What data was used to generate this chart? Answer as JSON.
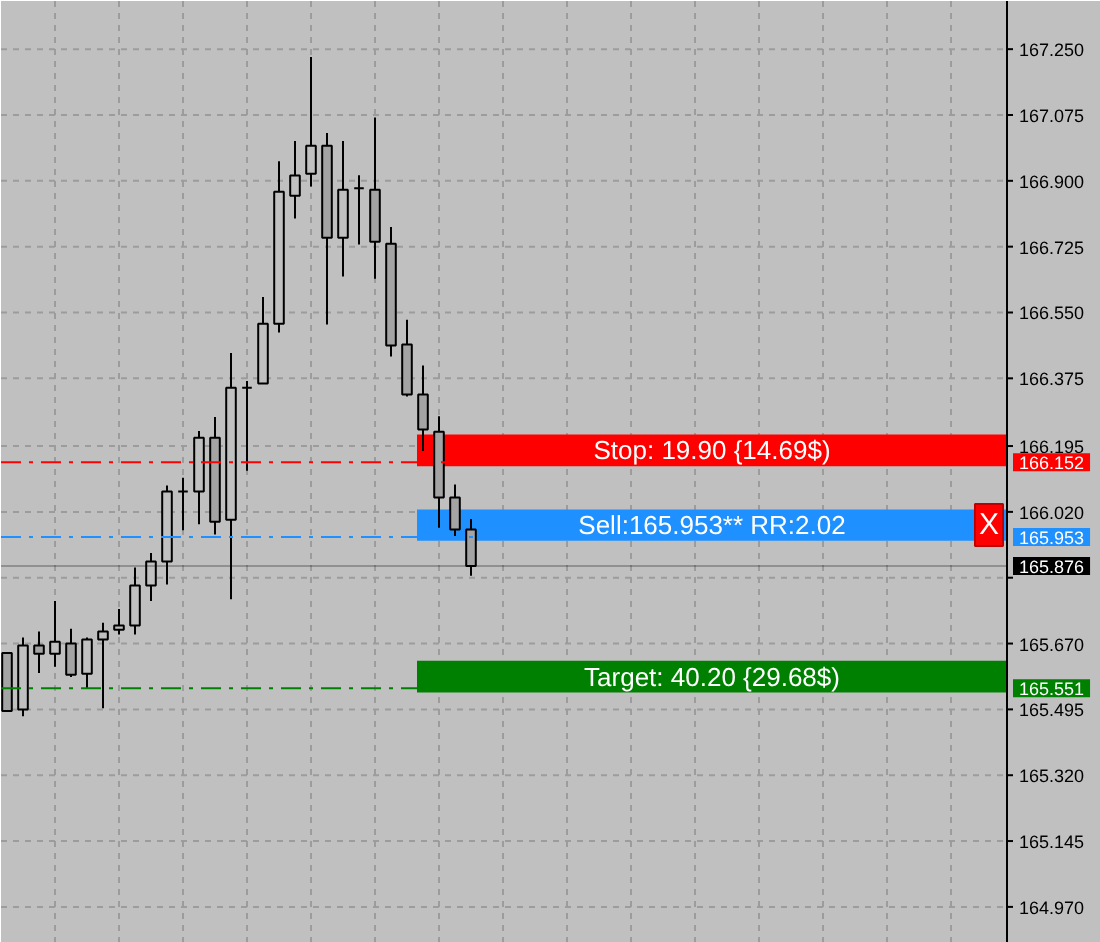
{
  "chart_data": {
    "type": "candlestick",
    "categories": [
      null,
      null,
      null,
      null,
      null,
      null,
      null,
      null,
      null,
      null,
      null,
      null,
      null,
      null,
      null,
      null,
      null,
      null,
      null,
      null,
      null,
      null,
      null,
      null,
      null,
      null,
      null,
      null,
      null,
      null,
      null,
      null,
      null,
      null,
      null,
      null,
      null,
      null,
      null,
      null,
      null,
      null,
      null,
      null,
      null,
      null,
      null,
      null,
      null,
      null,
      null,
      null,
      null,
      null,
      null,
      null,
      null,
      null,
      null,
      null,
      null,
      null,
      null
    ],
    "ohlc": [
      [
        165.645,
        165.645,
        165.491,
        165.491
      ],
      [
        165.495,
        165.686,
        165.477,
        165.665
      ],
      [
        165.665,
        165.702,
        165.592,
        165.643
      ],
      [
        165.643,
        165.783,
        165.608,
        165.675
      ],
      [
        165.67,
        165.709,
        165.581,
        165.587
      ],
      [
        165.59,
        165.686,
        165.549,
        165.681
      ],
      [
        165.681,
        165.725,
        165.498,
        165.702
      ],
      [
        165.707,
        165.762,
        165.694,
        165.718
      ],
      [
        165.718,
        165.872,
        165.694,
        165.824
      ],
      [
        165.824,
        165.911,
        165.783,
        165.888
      ],
      [
        165.888,
        166.09,
        165.827,
        166.074
      ],
      [
        166.074,
        166.111,
        165.971,
        166.074
      ],
      [
        166.074,
        166.235,
        165.987,
        166.217
      ],
      [
        166.217,
        166.272,
        165.96,
        165.994
      ],
      [
        165.999,
        166.442,
        165.788,
        166.35
      ],
      [
        166.35,
        166.368,
        166.129,
        166.35
      ],
      [
        166.361,
        166.591,
        166.361,
        166.52
      ],
      [
        166.52,
        166.952,
        166.497,
        166.871
      ],
      [
        166.86,
        167.006,
        166.8,
        166.914
      ],
      [
        166.919,
        167.229,
        166.885,
        166.993
      ],
      [
        166.993,
        167.027,
        166.518,
        166.749
      ],
      [
        166.749,
        167.006,
        166.646,
        166.876
      ],
      [
        166.88,
        166.915,
        166.731,
        166.88
      ],
      [
        166.876,
        167.068,
        166.64,
        166.738
      ],
      [
        166.733,
        166.777,
        166.433,
        166.462
      ],
      [
        166.465,
        166.531,
        166.327,
        166.332
      ],
      [
        166.332,
        166.409,
        166.182,
        166.239
      ],
      [
        166.233,
        166.274,
        165.978,
        166.058
      ],
      [
        166.058,
        166.093,
        165.955,
        165.973
      ],
      [
        165.973,
        166.001,
        165.85,
        165.876
      ],
      null,
      null,
      null,
      null,
      null,
      null,
      null,
      null,
      null,
      null,
      null,
      null,
      null,
      null,
      null,
      null,
      null,
      null,
      null,
      null,
      null,
      null,
      null,
      null,
      null,
      null,
      null,
      null,
      null,
      null,
      null,
      null,
      null
    ],
    "color": "#000000",
    "ylim": [
      164.874,
      167.378
    ],
    "yticks": [
      {
        "value": 164.97,
        "label": "164.970"
      },
      {
        "value": 165.145,
        "label": "165.145"
      },
      {
        "value": 165.32,
        "label": "165.320"
      },
      {
        "value": 165.495,
        "label": "165.495"
      },
      {
        "value": 165.67,
        "label": "165.670"
      },
      {
        "value": 165.845,
        "label": null
      },
      {
        "value": 166.02,
        "label": "166.020"
      },
      {
        "value": 166.195,
        "label": "166.195"
      },
      {
        "value": 166.375,
        "label": "166.375"
      },
      {
        "value": 166.55,
        "label": "166.550"
      },
      {
        "value": 166.725,
        "label": "166.725"
      },
      {
        "value": 166.9,
        "label": "166.900"
      },
      {
        "value": 167.075,
        "label": "167.075"
      },
      {
        "value": 167.25,
        "label": "167.250"
      }
    ],
    "bands": [
      {
        "axis": "y",
        "from": 166.141,
        "to": 166.226,
        "label": "Stop: 19.90 {14.69$)",
        "color": "#ff0000"
      },
      {
        "axis": "y",
        "from": 165.943,
        "to": 166.026,
        "label": "Sell:165.953** RR:2.02",
        "color": "#1e90ff"
      },
      {
        "axis": "y",
        "from": 165.54,
        "to": 165.624,
        "label": "Target: 40.20 {29.68$)",
        "color": "#008000"
      }
    ],
    "ref_lines": [
      {
        "axis": "y",
        "value": 166.152,
        "label": "166.152",
        "color": "#ff0000",
        "line_style": "dashdot"
      },
      {
        "axis": "y",
        "value": 165.953,
        "label": "165.953",
        "color": "#1e90ff",
        "line_style": "dashdot"
      },
      {
        "axis": "y",
        "value": 165.551,
        "label": "165.551",
        "color": "#008000",
        "line_style": "dashdot"
      },
      {
        "axis": "y",
        "value": 165.876,
        "label": "165.876",
        "color": "#000000",
        "line_style": "solid"
      }
    ],
    "annotations": [
      {
        "text": "X",
        "y": 165.985
      }
    ],
    "grid": true,
    "tick_labels": "y"
  }
}
